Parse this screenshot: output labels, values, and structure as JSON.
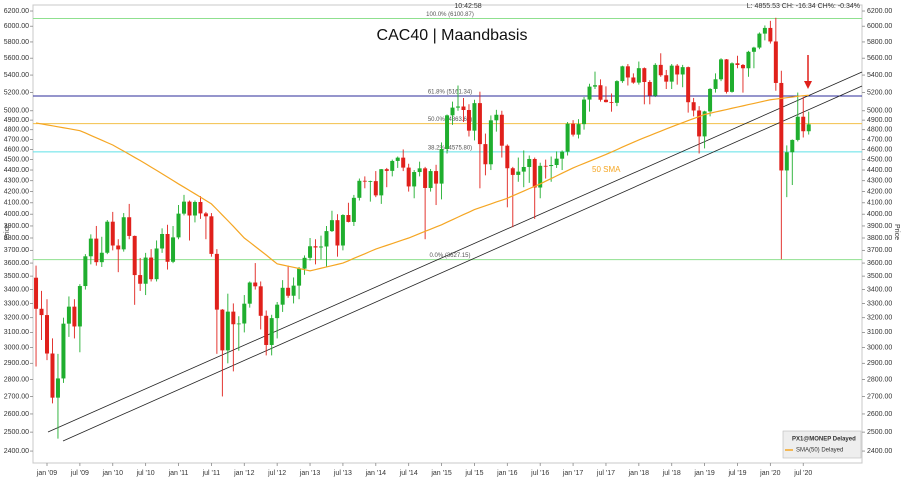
{
  "chart_data": {
    "type": "candlestick",
    "title": "CAC40 | Maandbasis",
    "time": "10:42:58",
    "quote": "L: 4855.53 CH: -16.34 CH%: -0.34%",
    "y_label": "Price",
    "log_scale": true,
    "ylim": [
      2339,
      6281
    ],
    "yticks": [
      {
        "value": 2400,
        "label": "2400.00"
      },
      {
        "value": 2500,
        "label": "2500.00"
      },
      {
        "value": 2600,
        "label": "2600.00"
      },
      {
        "value": 2700,
        "label": "2700.00"
      },
      {
        "value": 2800,
        "label": "2800.00"
      },
      {
        "value": 2900,
        "label": "2900.00"
      },
      {
        "value": 3000,
        "label": "3000.00"
      },
      {
        "value": 3100,
        "label": "3100.00"
      },
      {
        "value": 3200,
        "label": "3200.00"
      },
      {
        "value": 3300,
        "label": "3300.00"
      },
      {
        "value": 3400,
        "label": "3400.00"
      },
      {
        "value": 3500,
        "label": "3500.00"
      },
      {
        "value": 3600,
        "label": "3600.00"
      },
      {
        "value": 3700,
        "label": "3700.00"
      },
      {
        "value": 3800,
        "label": "3800.00"
      },
      {
        "value": 3900,
        "label": "3900.00"
      },
      {
        "value": 4000,
        "label": "4000.00"
      },
      {
        "value": 4100,
        "label": "4100.00"
      },
      {
        "value": 4200,
        "label": "4200.00"
      },
      {
        "value": 4300,
        "label": "4300.00"
      },
      {
        "value": 4400,
        "label": "4400.00"
      },
      {
        "value": 4500,
        "label": "4500.00"
      },
      {
        "value": 4600,
        "label": "4600.00"
      },
      {
        "value": 4700,
        "label": "4700.00"
      },
      {
        "value": 4800,
        "label": "4800.00"
      },
      {
        "value": 4900,
        "label": "4900.00"
      },
      {
        "value": 5000,
        "label": "5000.00"
      },
      {
        "value": 5200,
        "label": "5200.00"
      },
      {
        "value": 5400,
        "label": "5400.00"
      },
      {
        "value": 5600,
        "label": "5600.00"
      },
      {
        "value": 5800,
        "label": "5800.00"
      },
      {
        "value": 6000,
        "label": "6000.00"
      },
      {
        "value": 6200,
        "label": "6200.00"
      }
    ],
    "categories": [
      null,
      null,
      "jan '09",
      null,
      null,
      null,
      null,
      null,
      "jul '09",
      null,
      null,
      null,
      null,
      null,
      "jan '10",
      null,
      null,
      null,
      null,
      null,
      "jul '10",
      null,
      null,
      null,
      null,
      null,
      "jan '11",
      null,
      null,
      null,
      null,
      null,
      "jul '11",
      null,
      null,
      null,
      null,
      null,
      "jan '12",
      null,
      null,
      null,
      null,
      null,
      "jul '12",
      null,
      null,
      null,
      null,
      null,
      "jan '13",
      null,
      null,
      null,
      null,
      null,
      "jul '13",
      null,
      null,
      null,
      null,
      null,
      "jan '14",
      null,
      null,
      null,
      null,
      null,
      "jul '14",
      null,
      null,
      null,
      null,
      null,
      "jan '15",
      null,
      null,
      null,
      null,
      null,
      "jul '15",
      null,
      null,
      null,
      null,
      null,
      "jan '16",
      null,
      null,
      null,
      null,
      null,
      "jul '16",
      null,
      null,
      null,
      null,
      null,
      "jan '17",
      null,
      null,
      null,
      null,
      null,
      "jul '17",
      null,
      null,
      null,
      null,
      null,
      "jan '18",
      null,
      null,
      null,
      null,
      null,
      "jul '18",
      null,
      null,
      null,
      null,
      null,
      "jan '19",
      null,
      null,
      null,
      null,
      null,
      "jul '19",
      null,
      null,
      null,
      null,
      null,
      "jan '20",
      null,
      null,
      null,
      null,
      null,
      "jul '20",
      null
    ],
    "candles": {
      "name": "PX1@MONEP Delayed",
      "up_color": "#1fae2e",
      "down_color": "#e0201b",
      "open": [
        3488,
        3262,
        3218,
        2962,
        2693,
        2807,
        3159,
        3277,
        3140,
        3426,
        3653,
        3795,
        3607,
        3681,
        3936,
        3739,
        3708,
        3974,
        3817,
        3508,
        3443,
        3643,
        3477,
        3715,
        3833,
        3610,
        3805,
        4005,
        4110,
        3989,
        4107,
        4007,
        3982,
        3672,
        3256,
        2982,
        3242,
        3155,
        3160,
        3298,
        3452,
        3424,
        3213,
        3017,
        3197,
        3291,
        3413,
        3355,
        3429,
        3557,
        3641,
        3733,
        3723,
        3731,
        3857,
        3949,
        3739,
        3993,
        3934,
        4144,
        4299,
        4295,
        4296,
        4166,
        4408,
        4392,
        4487,
        4519,
        4423,
        4247,
        4381,
        4416,
        4233,
        4390,
        4273,
        4604,
        4951,
        5034,
        5046,
        5008,
        4790,
        5083,
        4653,
        4455,
        4898,
        4957,
        4637,
        4417,
        4354,
        4385,
        4429,
        4506,
        4237,
        4440,
        4438,
        4448,
        4509,
        4578,
        4862,
        4749,
        4858,
        5122,
        5267,
        5283,
        5120,
        5094,
        5086,
        5330,
        5503,
        5372,
        5313,
        5481,
        5320,
        5167,
        5520,
        5398,
        5324,
        5511,
        5407,
        5493,
        5093,
        5003,
        4731,
        4993,
        5241,
        5351,
        5586,
        5208,
        5539,
        5519,
        5480,
        5678,
        5730,
        5905,
        5978,
        5806,
        5309,
        4396,
        4572,
        4695,
        4936,
        4784
      ],
      "high": [
        3580,
        3390,
        3330,
        3060,
        2960,
        3200,
        3350,
        3330,
        3440,
        3670,
        3830,
        3900,
        3810,
        3950,
        4020,
        3790,
        4010,
        4090,
        3820,
        3640,
        3680,
        3710,
        3780,
        3880,
        3910,
        3900,
        4080,
        4170,
        4120,
        4120,
        4160,
        4020,
        4010,
        3710,
        3260,
        3370,
        3300,
        3210,
        3360,
        3460,
        3600,
        3460,
        3250,
        3220,
        3310,
        3470,
        3580,
        3490,
        3570,
        3660,
        3800,
        3790,
        3820,
        3900,
        4030,
        4000,
        4000,
        4100,
        4170,
        4320,
        4340,
        4300,
        4390,
        4410,
        4420,
        4500,
        4530,
        4600,
        4460,
        4400,
        4480,
        4430,
        4410,
        4450,
        4670,
        4960,
        5100,
        5280,
        5140,
        5070,
        5120,
        5210,
        4760,
        4950,
        5010,
        5000,
        4650,
        4430,
        4520,
        4590,
        4540,
        4520,
        4470,
        4500,
        4530,
        4580,
        4590,
        4880,
        4900,
        4910,
        5150,
        5300,
        5440,
        5350,
        5270,
        5190,
        5340,
        5510,
        5530,
        5420,
        5560,
        5490,
        5340,
        5540,
        5660,
        5460,
        5530,
        5530,
        5520,
        5500,
        5140,
        5050,
        5000,
        5250,
        5420,
        5600,
        5590,
        5550,
        5630,
        5530,
        5690,
        5740,
        5920,
        6010,
        6070,
        6110,
        5450,
        4640,
        4700,
        5200,
        5150,
        4990
      ],
      "low": [
        2880,
        3050,
        2920,
        2660,
        2465,
        2780,
        3070,
        3060,
        2970,
        3400,
        3590,
        3580,
        3570,
        3670,
        3700,
        3530,
        3690,
        3790,
        3290,
        3390,
        3360,
        3460,
        3460,
        3680,
        3550,
        3600,
        3790,
        3990,
        3780,
        3930,
        3960,
        3790,
        3650,
        2960,
        2700,
        2900,
        2850,
        2980,
        3100,
        3270,
        3400,
        3120,
        2950,
        2950,
        3060,
        3240,
        3340,
        3300,
        3330,
        3510,
        3620,
        3590,
        3630,
        3570,
        3850,
        3650,
        3700,
        3930,
        3900,
        4120,
        4230,
        4110,
        4150,
        4090,
        4240,
        4340,
        4420,
        4390,
        4200,
        4140,
        4340,
        3790,
        4200,
        4080,
        4130,
        4560,
        4850,
        5000,
        4880,
        4730,
        4690,
        4230,
        4350,
        4400,
        4780,
        4520,
        4060,
        3890,
        4290,
        4240,
        4280,
        3960,
        4140,
        4320,
        4290,
        4420,
        4400,
        4540,
        4730,
        4710,
        4800,
        4990,
        5240,
        5100,
        5090,
        4990,
        5050,
        5310,
        5280,
        5300,
        5290,
        5070,
        5070,
        5150,
        5380,
        5240,
        5240,
        5290,
        5260,
        4980,
        4940,
        4560,
        4610,
        4940,
        5200,
        5330,
        5190,
        5200,
        5480,
        5200,
        5380,
        5480,
        5710,
        5820,
        5780,
        5220,
        3630,
        4150,
        4260,
        4680,
        4720,
        4750
      ],
      "close": [
        3262,
        3218,
        2962,
        2693,
        2807,
        3159,
        3277,
        3140,
        3426,
        3653,
        3795,
        3607,
        3681,
        3936,
        3739,
        3708,
        3974,
        3817,
        3508,
        3443,
        3643,
        3477,
        3715,
        3833,
        3610,
        3805,
        4005,
        4110,
        3989,
        4107,
        4007,
        3982,
        3672,
        3256,
        2982,
        3242,
        3155,
        3160,
        3298,
        3452,
        3424,
        3213,
        3017,
        3197,
        3291,
        3413,
        3355,
        3429,
        3557,
        3641,
        3733,
        3723,
        3731,
        3857,
        3949,
        3739,
        3993,
        3934,
        4144,
        4299,
        4295,
        4296,
        4166,
        4408,
        4392,
        4487,
        4519,
        4423,
        4247,
        4381,
        4416,
        4233,
        4390,
        4273,
        4604,
        4951,
        5034,
        5046,
        5008,
        4790,
        5083,
        4653,
        4455,
        4898,
        4957,
        4637,
        4417,
        4354,
        4385,
        4429,
        4506,
        4237,
        4440,
        4438,
        4448,
        4509,
        4578,
        4862,
        4749,
        4858,
        5122,
        5267,
        5283,
        5120,
        5094,
        5086,
        5330,
        5503,
        5372,
        5313,
        5481,
        5320,
        5167,
        5520,
        5398,
        5324,
        5511,
        5407,
        5493,
        5093,
        5003,
        4731,
        4993,
        5241,
        5351,
        5586,
        5208,
        5539,
        5519,
        5480,
        5678,
        5730,
        5905,
        5978,
        5806,
        5309,
        4396,
        4572,
        4695,
        4936,
        4784,
        4855.53
      ]
    },
    "series": [
      {
        "name": "SMA(50) Delayed",
        "color": "#f5a623",
        "values": [
          4870,
          4860,
          4850,
          4840,
          4830,
          4820,
          4810,
          4800,
          4790,
          4766,
          4741,
          4717,
          4693,
          4668,
          4644,
          4613,
          4583,
          4552,
          4521,
          4491,
          4460,
          4428,
          4397,
          4365,
          4333,
          4302,
          4270,
          4240,
          4210,
          4180,
          4150,
          4120,
          4090,
          4042,
          3993,
          3945,
          3897,
          3848,
          3800,
          3766,
          3731,
          3697,
          3663,
          3628,
          3594,
          3585,
          3576,
          3567,
          3558,
          3549,
          3540,
          3550,
          3560,
          3570,
          3580,
          3590,
          3600,
          3618,
          3637,
          3655,
          3673,
          3692,
          3710,
          3725,
          3740,
          3755,
          3770,
          3785,
          3800,
          3818,
          3837,
          3855,
          3873,
          3892,
          3910,
          3932,
          3953,
          3975,
          3997,
          4018,
          4040,
          4057,
          4073,
          4090,
          4107,
          4123,
          4140,
          4162,
          4183,
          4205,
          4227,
          4248,
          4270,
          4295,
          4320,
          4345,
          4370,
          4395,
          4420,
          4442,
          4463,
          4485,
          4507,
          4528,
          4550,
          4574,
          4598,
          4623,
          4647,
          4671,
          4695,
          4718,
          4740,
          4763,
          4785,
          4808,
          4830,
          4852,
          4873,
          4895,
          4917,
          4938,
          4960,
          4973,
          4987,
          5000,
          5013,
          5027,
          5040,
          5053,
          5067,
          5080,
          5093,
          5107,
          5120,
          5128,
          5135,
          5143,
          5150,
          5158,
          5165,
          5170
        ]
      }
    ],
    "fib_levels": [
      {
        "value": 6100.87,
        "label": "100.0% (6100.87)",
        "color": "#8fe08f"
      },
      {
        "value": 5161.34,
        "label": "61.8% (5161.34)",
        "color": "#2b2b9a"
      },
      {
        "value": 4863.62,
        "label": "50.0% (4863.62)",
        "color": "#f2c04a"
      },
      {
        "value": 4575.8,
        "label": "38.2% (4575.80)",
        "color": "#5fe0e8"
      },
      {
        "value": 3627.15,
        "label": "0.0% (3627.15)",
        "color": "#8fe08f"
      }
    ],
    "annotations": [
      "50 SMA"
    ]
  }
}
